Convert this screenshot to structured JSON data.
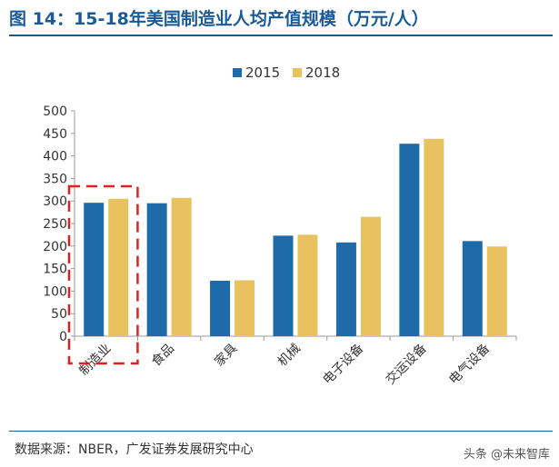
{
  "header": {
    "title": "图 14：15-18年美国制造业人均产值规模（万元/人）"
  },
  "footer": {
    "source": "数据来源：NBER，广发证券发展研究中心",
    "watermark": "头条 @未来智库"
  },
  "chart_data": {
    "type": "bar",
    "categories": [
      "制造业",
      "食品",
      "家具",
      "机械",
      "电子设备",
      "交运设备",
      "电气设备"
    ],
    "series": [
      {
        "name": "2015",
        "values": [
          296,
          295,
          123,
          223,
          208,
          427,
          211
        ],
        "color": "#1f6aa9"
      },
      {
        "name": "2018",
        "values": [
          305,
          307,
          124,
          225,
          265,
          438,
          199
        ],
        "color": "#e8c25e"
      }
    ],
    "ylim": [
      0,
      500
    ],
    "yticks": [
      0,
      50,
      100,
      150,
      200,
      250,
      300,
      350,
      400,
      450,
      500
    ],
    "grid": false,
    "legend_position": "top-center",
    "annotation": {
      "type": "dashed-box",
      "category_index": 0,
      "color": "#e02020"
    }
  }
}
